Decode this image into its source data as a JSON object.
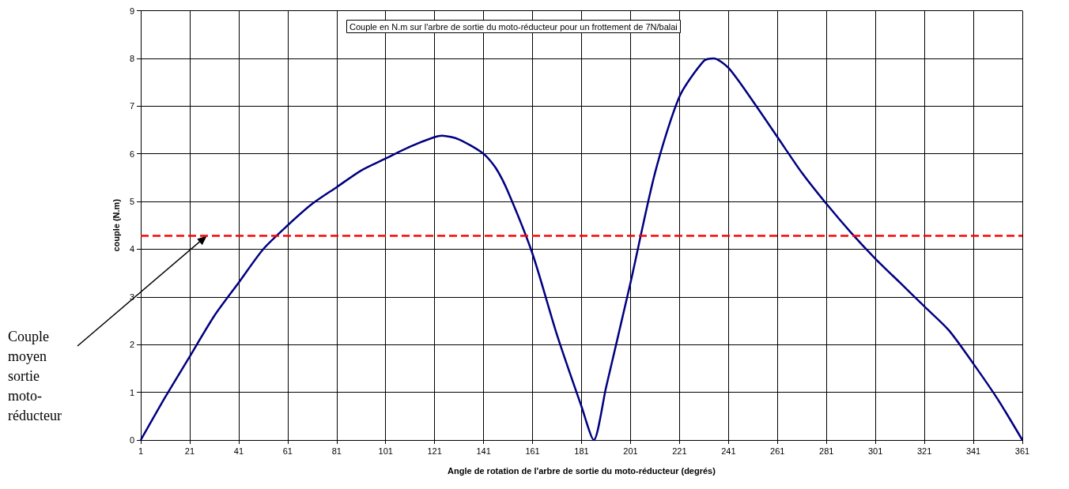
{
  "chart_data": {
    "type": "line",
    "title": "Couple en N.m sur l'arbre de sortie du moto-réducteur pour un frottement de 7N/balai",
    "xlabel": "Angle de rotation de l'arbre de sortie du moto-réducteur (degrés)",
    "ylabel": "couple (N.m)",
    "x": [
      1,
      11,
      21,
      31,
      41,
      51,
      61,
      71,
      81,
      91,
      101,
      111,
      121,
      124,
      131,
      141,
      146,
      151,
      161,
      171,
      181,
      186,
      191,
      201,
      211,
      221,
      231,
      235,
      241,
      251,
      261,
      271,
      281,
      291,
      301,
      311,
      321,
      331,
      341,
      351,
      361
    ],
    "series": [
      {
        "color": "#000080",
        "values": [
          0,
          0.9,
          1.75,
          2.6,
          3.3,
          4.0,
          4.5,
          4.95,
          5.3,
          5.65,
          5.9,
          6.15,
          6.35,
          6.38,
          6.3,
          6.0,
          5.7,
          5.2,
          3.9,
          2.2,
          0.7,
          0,
          1.1,
          3.3,
          5.6,
          7.2,
          7.95,
          8.0,
          7.8,
          7.1,
          6.35,
          5.6,
          4.95,
          4.35,
          3.8,
          3.3,
          2.8,
          2.3,
          1.6,
          0.85,
          0
        ]
      }
    ],
    "xlim": [
      1,
      361
    ],
    "xticks": [
      1,
      21,
      41,
      61,
      81,
      101,
      121,
      141,
      161,
      181,
      201,
      221,
      241,
      261,
      281,
      301,
      321,
      341,
      361
    ],
    "ylim": [
      0,
      9
    ],
    "yticks": [
      0,
      1,
      2,
      3,
      4,
      5,
      6,
      7,
      8,
      9
    ],
    "ref_lines": [
      {
        "axis": "y",
        "value": 4.28,
        "color": "#ff0000",
        "line_style": "dashed"
      }
    ],
    "annotations": [
      {
        "text": "Couple moyen sortie moto-réducteur",
        "x": 28,
        "y": 4.28
      }
    ],
    "grid": true,
    "marker": "none",
    "line_style": "solid"
  }
}
